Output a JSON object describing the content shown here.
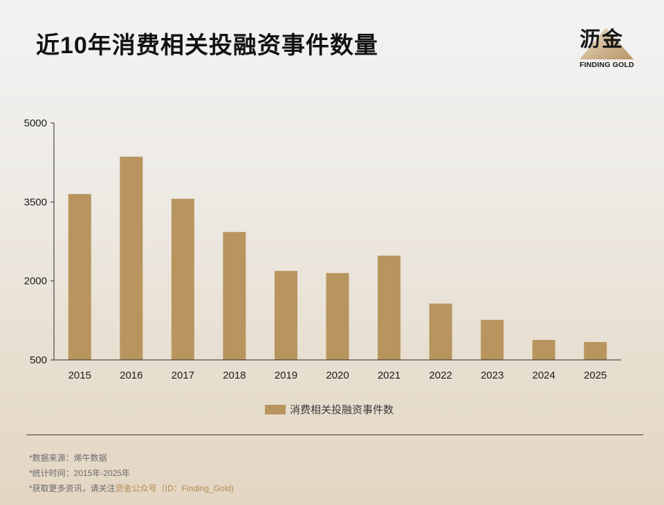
{
  "header": {
    "title": "近10年消费相关投融资事件数量"
  },
  "logo": {
    "cn": "沥金",
    "en": "FINDING GOLD"
  },
  "colors": {
    "bar": "#b8955f",
    "axis": "#2a2a2a",
    "highlight": "#b0894e"
  },
  "chart_data": {
    "type": "bar",
    "categories": [
      "2015",
      "2016",
      "2017",
      "2018",
      "2019",
      "2020",
      "2021",
      "2022",
      "2023",
      "2024",
      "2025"
    ],
    "series": [
      {
        "name": "消费相关投融资事件数",
        "values": [
          3650,
          4360,
          3560,
          2930,
          2190,
          2150,
          2480,
          1570,
          1260,
          880,
          840
        ]
      }
    ],
    "ylim": [
      500,
      5000
    ],
    "yticks": [
      "500",
      "2000",
      "3500",
      "5000"
    ],
    "xlabel": "",
    "ylabel": "",
    "grid": false,
    "legend": "bottom-center"
  },
  "footer": {
    "source": "*数据来源：烯牛数据",
    "period": "*统计时间：2015年-2025年",
    "more_prefix": "*获取更多资讯，请关注",
    "more_highlight": "沥金公众号（ID：Finding_Gold)"
  }
}
